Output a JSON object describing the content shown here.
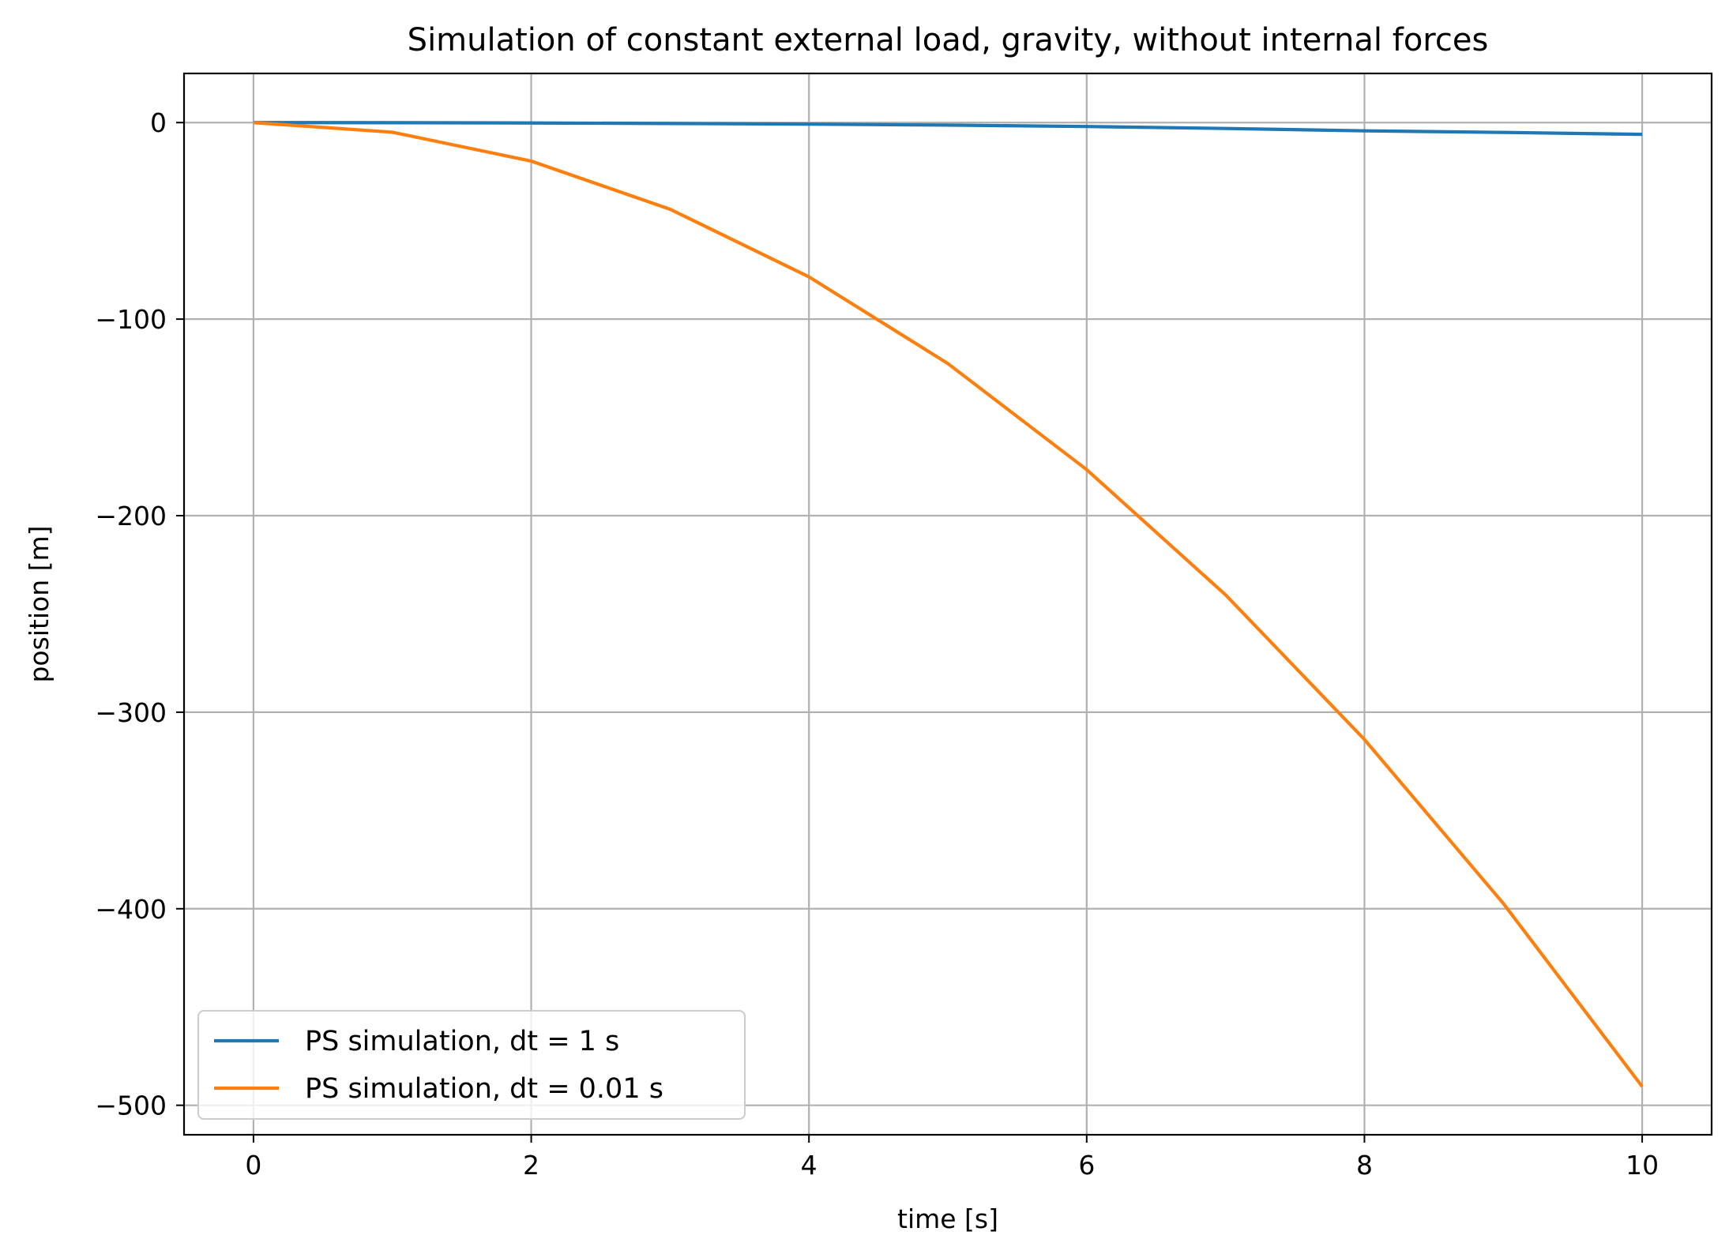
{
  "chart_data": {
    "type": "line",
    "title": "Simulation of constant external load, gravity, without internal forces",
    "xlabel": "time [s]",
    "ylabel": "position [m]",
    "xlim": [
      -0.5,
      10.5
    ],
    "ylim": [
      -515,
      25
    ],
    "x_ticks": [
      0,
      2,
      4,
      6,
      8,
      10
    ],
    "x_tick_labels": [
      "0",
      "2",
      "4",
      "6",
      "8",
      "10"
    ],
    "y_ticks": [
      0,
      -100,
      -200,
      -300,
      -400,
      -500
    ],
    "y_tick_labels": [
      "0",
      "−100",
      "−200",
      "−300",
      "−400",
      "−500"
    ],
    "grid": true,
    "legend_position": "lower-left",
    "series": [
      {
        "name": "PS simulation, dt = 1 s",
        "color": "#1f77b4",
        "x": [
          0,
          1,
          2,
          3,
          4,
          5,
          6,
          7,
          8,
          9,
          10
        ],
        "y": [
          0,
          -0.05,
          -0.2,
          -0.45,
          -0.8,
          -1.3,
          -2.0,
          -3.0,
          -4.2,
          -5.0,
          -6.0
        ]
      },
      {
        "name": "PS simulation, dt = 0.01 s",
        "color": "#ff7f0e",
        "x": [
          0,
          1,
          2,
          3,
          4,
          5,
          6,
          7,
          8,
          9,
          10
        ],
        "y": [
          0,
          -4.9,
          -19.6,
          -44.1,
          -78.5,
          -122.6,
          -176.6,
          -240.3,
          -313.9,
          -397.3,
          -490.5
        ]
      }
    ]
  }
}
